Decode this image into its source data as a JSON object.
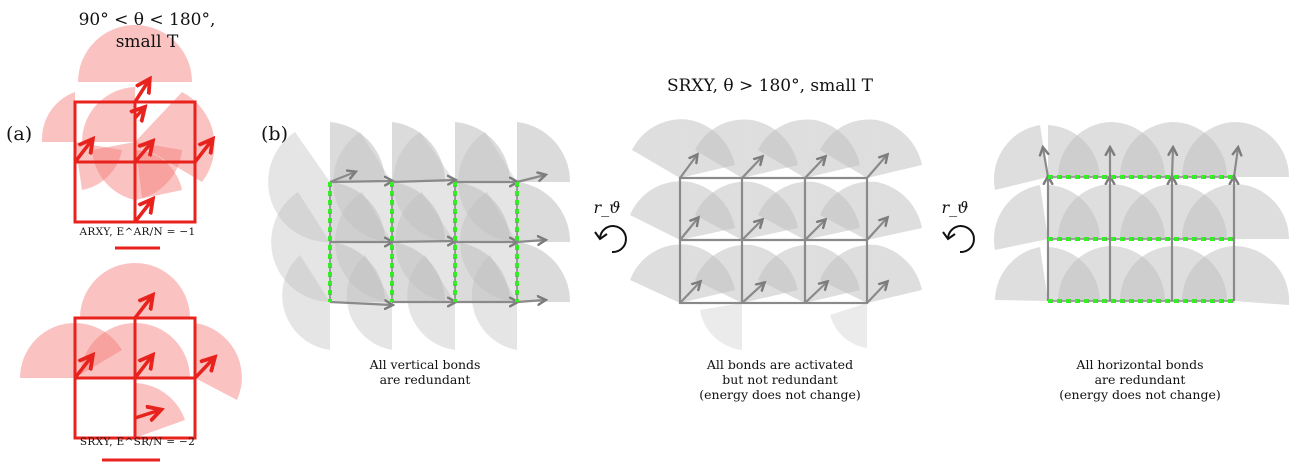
{
  "panel_a": {
    "label": "(a)",
    "title_line1": "90° < θ < 180°,",
    "title_line2": "small T",
    "arxy_caption": "ARXY, E^AR/N = −1",
    "srxy_caption": "SRXY, E^SR/N = −2"
  },
  "panel_b": {
    "label": "(b)",
    "title": "SRXY, θ > 180°, small T",
    "rotation_label_left": "r_ϑ",
    "rotation_label_right": "r_ϑ",
    "caption_left": [
      "All vertical bonds",
      "are redundant"
    ],
    "caption_middle": [
      "All bonds are activated",
      "but not redundant",
      "(energy does not change)"
    ],
    "caption_right": [
      "All horizontal bonds",
      "are redundant",
      "(energy does not change)"
    ]
  },
  "colors": {
    "red": "#e8231e",
    "red_fan": "#f9a9a6",
    "gray": "#8a8a8a",
    "gray_fan": "#cfcfcf",
    "green": "#33ee22"
  }
}
